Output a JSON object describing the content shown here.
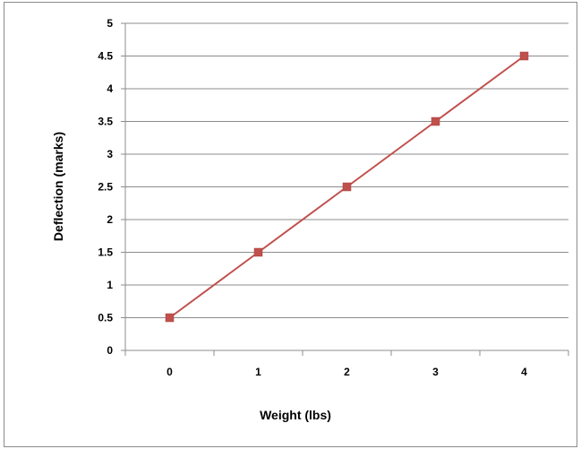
{
  "chart_data": {
    "type": "line",
    "title": "",
    "xlabel": "Weight (lbs)",
    "ylabel": "Deflection (marks)",
    "categories": [
      "0",
      "1",
      "2",
      "3",
      "4"
    ],
    "series": [
      {
        "values": [
          0.5,
          1.5,
          2.5,
          3.5,
          4.5
        ],
        "color": "#c0504d",
        "marker": "square"
      }
    ],
    "ylim": [
      0,
      5
    ],
    "y_ticks": [
      "0",
      "0.5",
      "1",
      "1.5",
      "2",
      "2.5",
      "3",
      "3.5",
      "4",
      "4.5",
      "5"
    ],
    "grid": "horizontal",
    "legend": "none"
  }
}
